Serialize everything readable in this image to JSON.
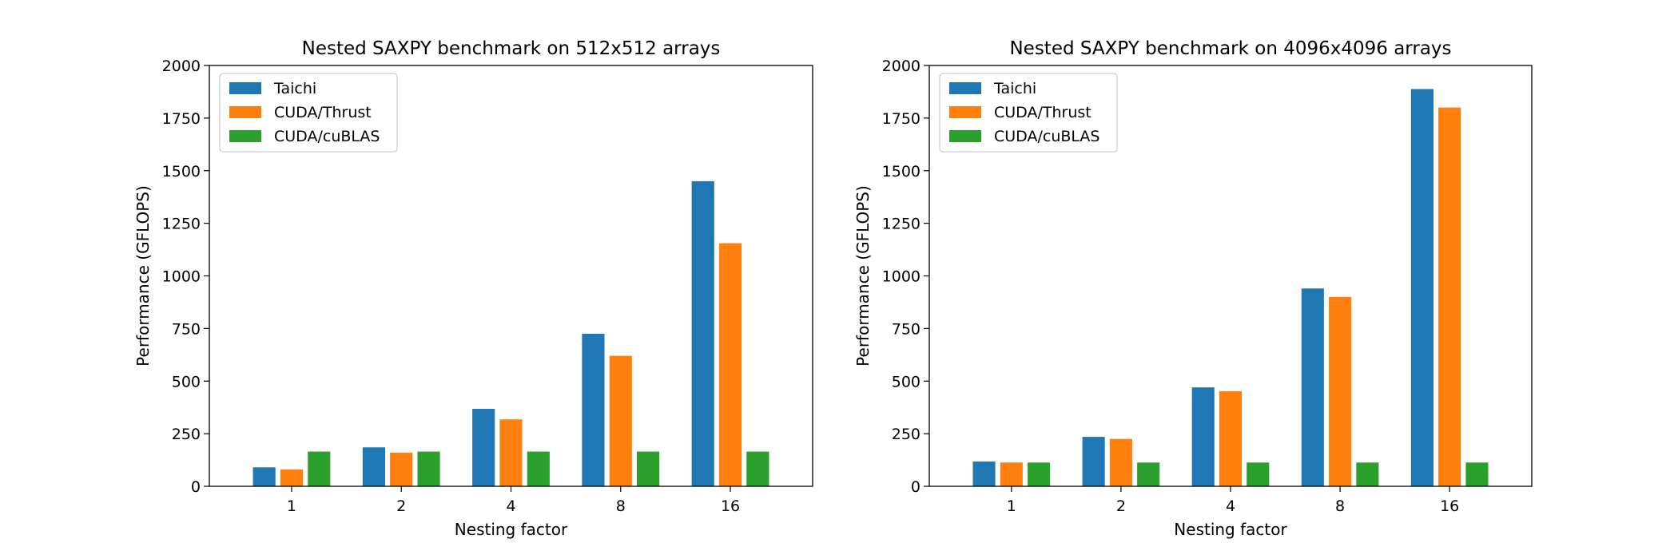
{
  "chart_data": [
    {
      "type": "bar",
      "title": "Nested SAXPY benchmark on 512x512 arrays",
      "xlabel": "Nesting factor",
      "ylabel": "Performance (GFLOPS)",
      "categories": [
        "1",
        "2",
        "4",
        "8",
        "16"
      ],
      "ylim": [
        0,
        2000
      ],
      "yticks": [
        0,
        250,
        500,
        750,
        1000,
        1250,
        1500,
        1750,
        2000
      ],
      "legend_position": "top-left",
      "grid": false,
      "series": [
        {
          "name": "Taichi",
          "color": "#1f77b4",
          "values": [
            90,
            185,
            368,
            725,
            1450
          ]
        },
        {
          "name": "CUDA/Thrust",
          "color": "#ff7f0e",
          "values": [
            80,
            160,
            318,
            620,
            1155
          ]
        },
        {
          "name": "CUDA/cuBLAS",
          "color": "#2ca02c",
          "values": [
            165,
            165,
            165,
            165,
            165
          ]
        }
      ]
    },
    {
      "type": "bar",
      "title": "Nested SAXPY benchmark on 4096x4096 arrays",
      "xlabel": "Nesting factor",
      "ylabel": "Performance (GFLOPS)",
      "categories": [
        "1",
        "2",
        "4",
        "8",
        "16"
      ],
      "ylim": [
        0,
        2000
      ],
      "yticks": [
        0,
        250,
        500,
        750,
        1000,
        1250,
        1500,
        1750,
        2000
      ],
      "legend_position": "top-left",
      "grid": false,
      "series": [
        {
          "name": "Taichi",
          "color": "#1f77b4",
          "values": [
            118,
            235,
            470,
            940,
            1888
          ]
        },
        {
          "name": "CUDA/Thrust",
          "color": "#ff7f0e",
          "values": [
            113,
            225,
            452,
            900,
            1800
          ]
        },
        {
          "name": "CUDA/cuBLAS",
          "color": "#2ca02c",
          "values": [
            113,
            113,
            113,
            113,
            113
          ]
        }
      ]
    }
  ]
}
